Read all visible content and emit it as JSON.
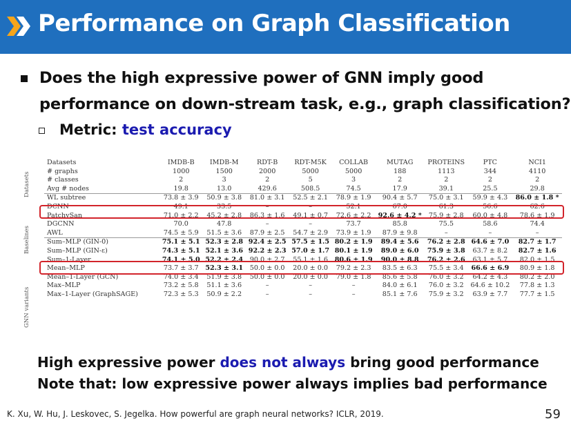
{
  "slide": {
    "title": "Performance on Graph Classification",
    "question_line1": "Does the high expressive power of GNN imply good",
    "question_line2": "performance on down-stream task, e.g., graph classification?",
    "metric_label": "Metric: ",
    "metric_value": "test accuracy",
    "conclusion1_a": "High expressive power ",
    "conclusion1_b": "does not always",
    "conclusion1_c": " bring good performance",
    "conclusion2": "Note that: low expressive power always implies bad performance",
    "citation": "K. Xu, W. Hu, J. Leskovec, S. Jegelka. How powerful are graph neural networks? ICLR, 2019.",
    "page_number": "59",
    "colors": {
      "title_bar": "#1f6fbe",
      "highlight": "#1b1bb0",
      "box": "#d2232a"
    }
  },
  "table": {
    "group_labels": [
      "Datasets",
      "Baselines",
      "GNN variants"
    ],
    "header": [
      "Datasets",
      "IMDB-B",
      "IMDB-M",
      "RDT-B",
      "RDT-M5K",
      "COLLAB",
      "MUTAG",
      "PROTEINS",
      "PTC",
      "NCI1"
    ],
    "dataset_rows": [
      [
        "# graphs",
        "1000",
        "1500",
        "2000",
        "5000",
        "5000",
        "188",
        "1113",
        "344",
        "4110"
      ],
      [
        "# classes",
        "2",
        "3",
        "2",
        "5",
        "3",
        "2",
        "2",
        "2",
        "2"
      ],
      [
        "Avg # nodes",
        "19.8",
        "13.0",
        "429.6",
        "508.5",
        "74.5",
        "17.9",
        "39.1",
        "25.5",
        "29.8"
      ]
    ],
    "baseline_rows": [
      [
        "WL subtree",
        "73.8 ± 3.9",
        "50.9 ± 3.8",
        "81.0 ± 3.1",
        "52.5 ± 2.1",
        "78.9 ± 1.9",
        "90.4 ± 5.7",
        "75.0 ± 3.1",
        "59.9 ± 4.3",
        "86.0 ± 1.8 *"
      ],
      [
        "DCNN",
        "49.1",
        "33.5",
        "–",
        "–",
        "52.1",
        "67.0",
        "61.3",
        "56.6",
        "62.6"
      ],
      [
        "PatchySan",
        "71.0 ± 2.2",
        "45.2 ± 2.8",
        "86.3 ± 1.6",
        "49.1 ± 0.7",
        "72.6 ± 2.2",
        "92.6 ± 4.2 *",
        "75.9 ± 2.8",
        "60.0 ± 4.8",
        "78.6 ± 1.9"
      ],
      [
        "DGCNN",
        "70.0",
        "47.8",
        "–",
        "–",
        "73.7",
        "85.8",
        "75.5",
        "58.6",
        "74.4"
      ],
      [
        "AWL",
        "74.5 ± 5.9",
        "51.5 ± 3.6",
        "87.9 ± 2.5",
        "54.7 ± 2.9",
        "73.9 ± 1.9",
        "87.9 ± 9.8",
        "–",
        "–",
        "–"
      ]
    ],
    "gnn_rows": [
      [
        "Sum–MLP (GIN-0)",
        "75.1 ± 5.1",
        "52.3 ± 2.8",
        "92.4 ± 2.5",
        "57.5 ± 1.5",
        "80.2 ± 1.9",
        "89.4 ± 5.6",
        "76.2 ± 2.8",
        "64.6 ± 7.0",
        "82.7 ± 1.7"
      ],
      [
        "Sum–MLP (GIN-ε)",
        "74.3 ± 5.1",
        "52.1 ± 3.6",
        "92.2 ± 2.3",
        "57.0 ± 1.7",
        "80.1 ± 1.9",
        "89.0 ± 6.0",
        "75.9 ± 3.8",
        "63.7 ± 8.2",
        "82.7 ± 1.6"
      ],
      [
        "Sum–1-Layer",
        "74.1 ± 5.0",
        "52.2 ± 2.4",
        "90.0 ± 2.7",
        "55.1 ± 1.6",
        "80.6 ± 1.9",
        "90.0 ± 8.8",
        "76.2 ± 2.6",
        "63.1 ± 5.7",
        "82.0 ± 1.5"
      ],
      [
        "Mean–MLP",
        "73.7 ± 3.7",
        "52.3 ± 3.1",
        "50.0 ± 0.0",
        "20.0 ± 0.0",
        "79.2 ± 2.3",
        "83.5 ± 6.3",
        "75.5 ± 3.4",
        "66.6 ± 6.9",
        "80.9 ± 1.8"
      ],
      [
        "Mean–1-Layer (GCN)",
        "74.0 ± 3.4",
        "51.9 ± 3.8",
        "50.0 ± 0.0",
        "20.0 ± 0.0",
        "79.0 ± 1.8",
        "85.6 ± 5.8",
        "76.0 ± 3.2",
        "64.2 ± 4.3",
        "80.2 ± 2.0"
      ],
      [
        "Max–MLP",
        "73.2 ± 5.8",
        "51.1 ± 3.6",
        "–",
        "–",
        "–",
        "84.0 ± 6.1",
        "76.0 ± 3.2",
        "64.6 ± 10.2",
        "77.8 ± 1.3"
      ],
      [
        "Max–1-Layer (GraphSAGE)",
        "72.3 ± 5.3",
        "50.9 ± 2.2",
        "–",
        "–",
        "–",
        "85.1 ± 7.6",
        "75.9 ± 3.2",
        "63.9 ± 7.7",
        "77.7 ± 1.5"
      ]
    ],
    "bold_cells": {
      "baseline": [
        [
          0,
          9
        ],
        [
          2,
          6
        ]
      ],
      "gnn": [
        [
          0,
          1
        ],
        [
          0,
          2
        ],
        [
          0,
          3
        ],
        [
          0,
          4
        ],
        [
          0,
          5
        ],
        [
          0,
          6
        ],
        [
          0,
          7
        ],
        [
          0,
          8
        ],
        [
          0,
          9
        ],
        [
          1,
          1
        ],
        [
          1,
          2
        ],
        [
          1,
          3
        ],
        [
          1,
          4
        ],
        [
          1,
          5
        ],
        [
          1,
          6
        ],
        [
          1,
          7
        ],
        [
          1,
          9
        ],
        [
          2,
          1
        ],
        [
          2,
          2
        ],
        [
          2,
          5
        ],
        [
          2,
          6
        ],
        [
          2,
          7
        ],
        [
          3,
          2
        ],
        [
          3,
          8
        ]
      ]
    }
  }
}
